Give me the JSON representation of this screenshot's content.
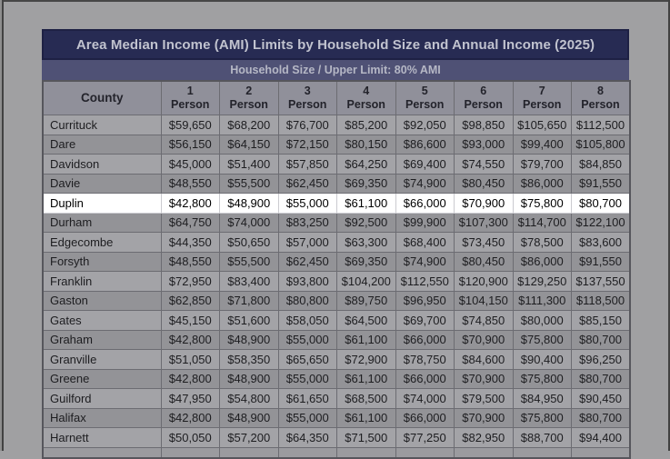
{
  "table": {
    "title": "Area Median Income (AMI) Limits by Household Size and Annual Income (2025)",
    "subtitle": "Household Size / Upper Limit: 80% AMI",
    "county_header": "County",
    "person_label": "Person",
    "person_headers": [
      "1",
      "2",
      "3",
      "4",
      "5",
      "6",
      "7",
      "8"
    ],
    "highlighted_county": "Duplin",
    "rows": [
      {
        "county": "Currituck",
        "values": [
          "$59,650",
          "$68,200",
          "$76,700",
          "$85,200",
          "$92,050",
          "$98,850",
          "$105,650",
          "$112,500"
        ]
      },
      {
        "county": "Dare",
        "values": [
          "$56,150",
          "$64,150",
          "$72,150",
          "$80,150",
          "$86,600",
          "$93,000",
          "$99,400",
          "$105,800"
        ]
      },
      {
        "county": "Davidson",
        "values": [
          "$45,000",
          "$51,400",
          "$57,850",
          "$64,250",
          "$69,400",
          "$74,550",
          "$79,700",
          "$84,850"
        ]
      },
      {
        "county": "Davie",
        "values": [
          "$48,550",
          "$55,500",
          "$62,450",
          "$69,350",
          "$74,900",
          "$80,450",
          "$86,000",
          "$91,550"
        ]
      },
      {
        "county": "Duplin",
        "values": [
          "$42,800",
          "$48,900",
          "$55,000",
          "$61,100",
          "$66,000",
          "$70,900",
          "$75,800",
          "$80,700"
        ]
      },
      {
        "county": "Durham",
        "values": [
          "$64,750",
          "$74,000",
          "$83,250",
          "$92,500",
          "$99,900",
          "$107,300",
          "$114,700",
          "$122,100"
        ]
      },
      {
        "county": "Edgecombe",
        "values": [
          "$44,350",
          "$50,650",
          "$57,000",
          "$63,300",
          "$68,400",
          "$73,450",
          "$78,500",
          "$83,600"
        ]
      },
      {
        "county": "Forsyth",
        "values": [
          "$48,550",
          "$55,500",
          "$62,450",
          "$69,350",
          "$74,900",
          "$80,450",
          "$86,000",
          "$91,550"
        ]
      },
      {
        "county": "Franklin",
        "values": [
          "$72,950",
          "$83,400",
          "$93,800",
          "$104,200",
          "$112,550",
          "$120,900",
          "$129,250",
          "$137,550"
        ]
      },
      {
        "county": "Gaston",
        "values": [
          "$62,850",
          "$71,800",
          "$80,800",
          "$89,750",
          "$96,950",
          "$104,150",
          "$111,300",
          "$118,500"
        ]
      },
      {
        "county": "Gates",
        "values": [
          "$45,150",
          "$51,600",
          "$58,050",
          "$64,500",
          "$69,700",
          "$74,850",
          "$80,000",
          "$85,150"
        ]
      },
      {
        "county": "Graham",
        "values": [
          "$42,800",
          "$48,900",
          "$55,000",
          "$61,100",
          "$66,000",
          "$70,900",
          "$75,800",
          "$80,700"
        ]
      },
      {
        "county": "Granville",
        "values": [
          "$51,050",
          "$58,350",
          "$65,650",
          "$72,900",
          "$78,750",
          "$84,600",
          "$90,400",
          "$96,250"
        ]
      },
      {
        "county": "Greene",
        "values": [
          "$42,800",
          "$48,900",
          "$55,000",
          "$61,100",
          "$66,000",
          "$70,900",
          "$75,800",
          "$80,700"
        ]
      },
      {
        "county": "Guilford",
        "values": [
          "$47,950",
          "$54,800",
          "$61,650",
          "$68,500",
          "$74,000",
          "$79,500",
          "$84,950",
          "$90,450"
        ]
      },
      {
        "county": "Halifax",
        "values": [
          "$42,800",
          "$48,900",
          "$55,000",
          "$61,100",
          "$66,000",
          "$70,900",
          "$75,800",
          "$80,700"
        ]
      },
      {
        "county": "Harnett",
        "values": [
          "$50,050",
          "$57,200",
          "$64,350",
          "$71,500",
          "$77,250",
          "$82,950",
          "$88,700",
          "$94,400"
        ]
      }
    ],
    "colors": {
      "title_bg": "#272b53",
      "subtitle_bg": "#4f5175",
      "header_bg": "#90909a",
      "row_light": "#a3a3a7",
      "row_dark": "#939397",
      "highlight_bg": "#ffffff",
      "page_bg": "#a0a0a2"
    }
  }
}
